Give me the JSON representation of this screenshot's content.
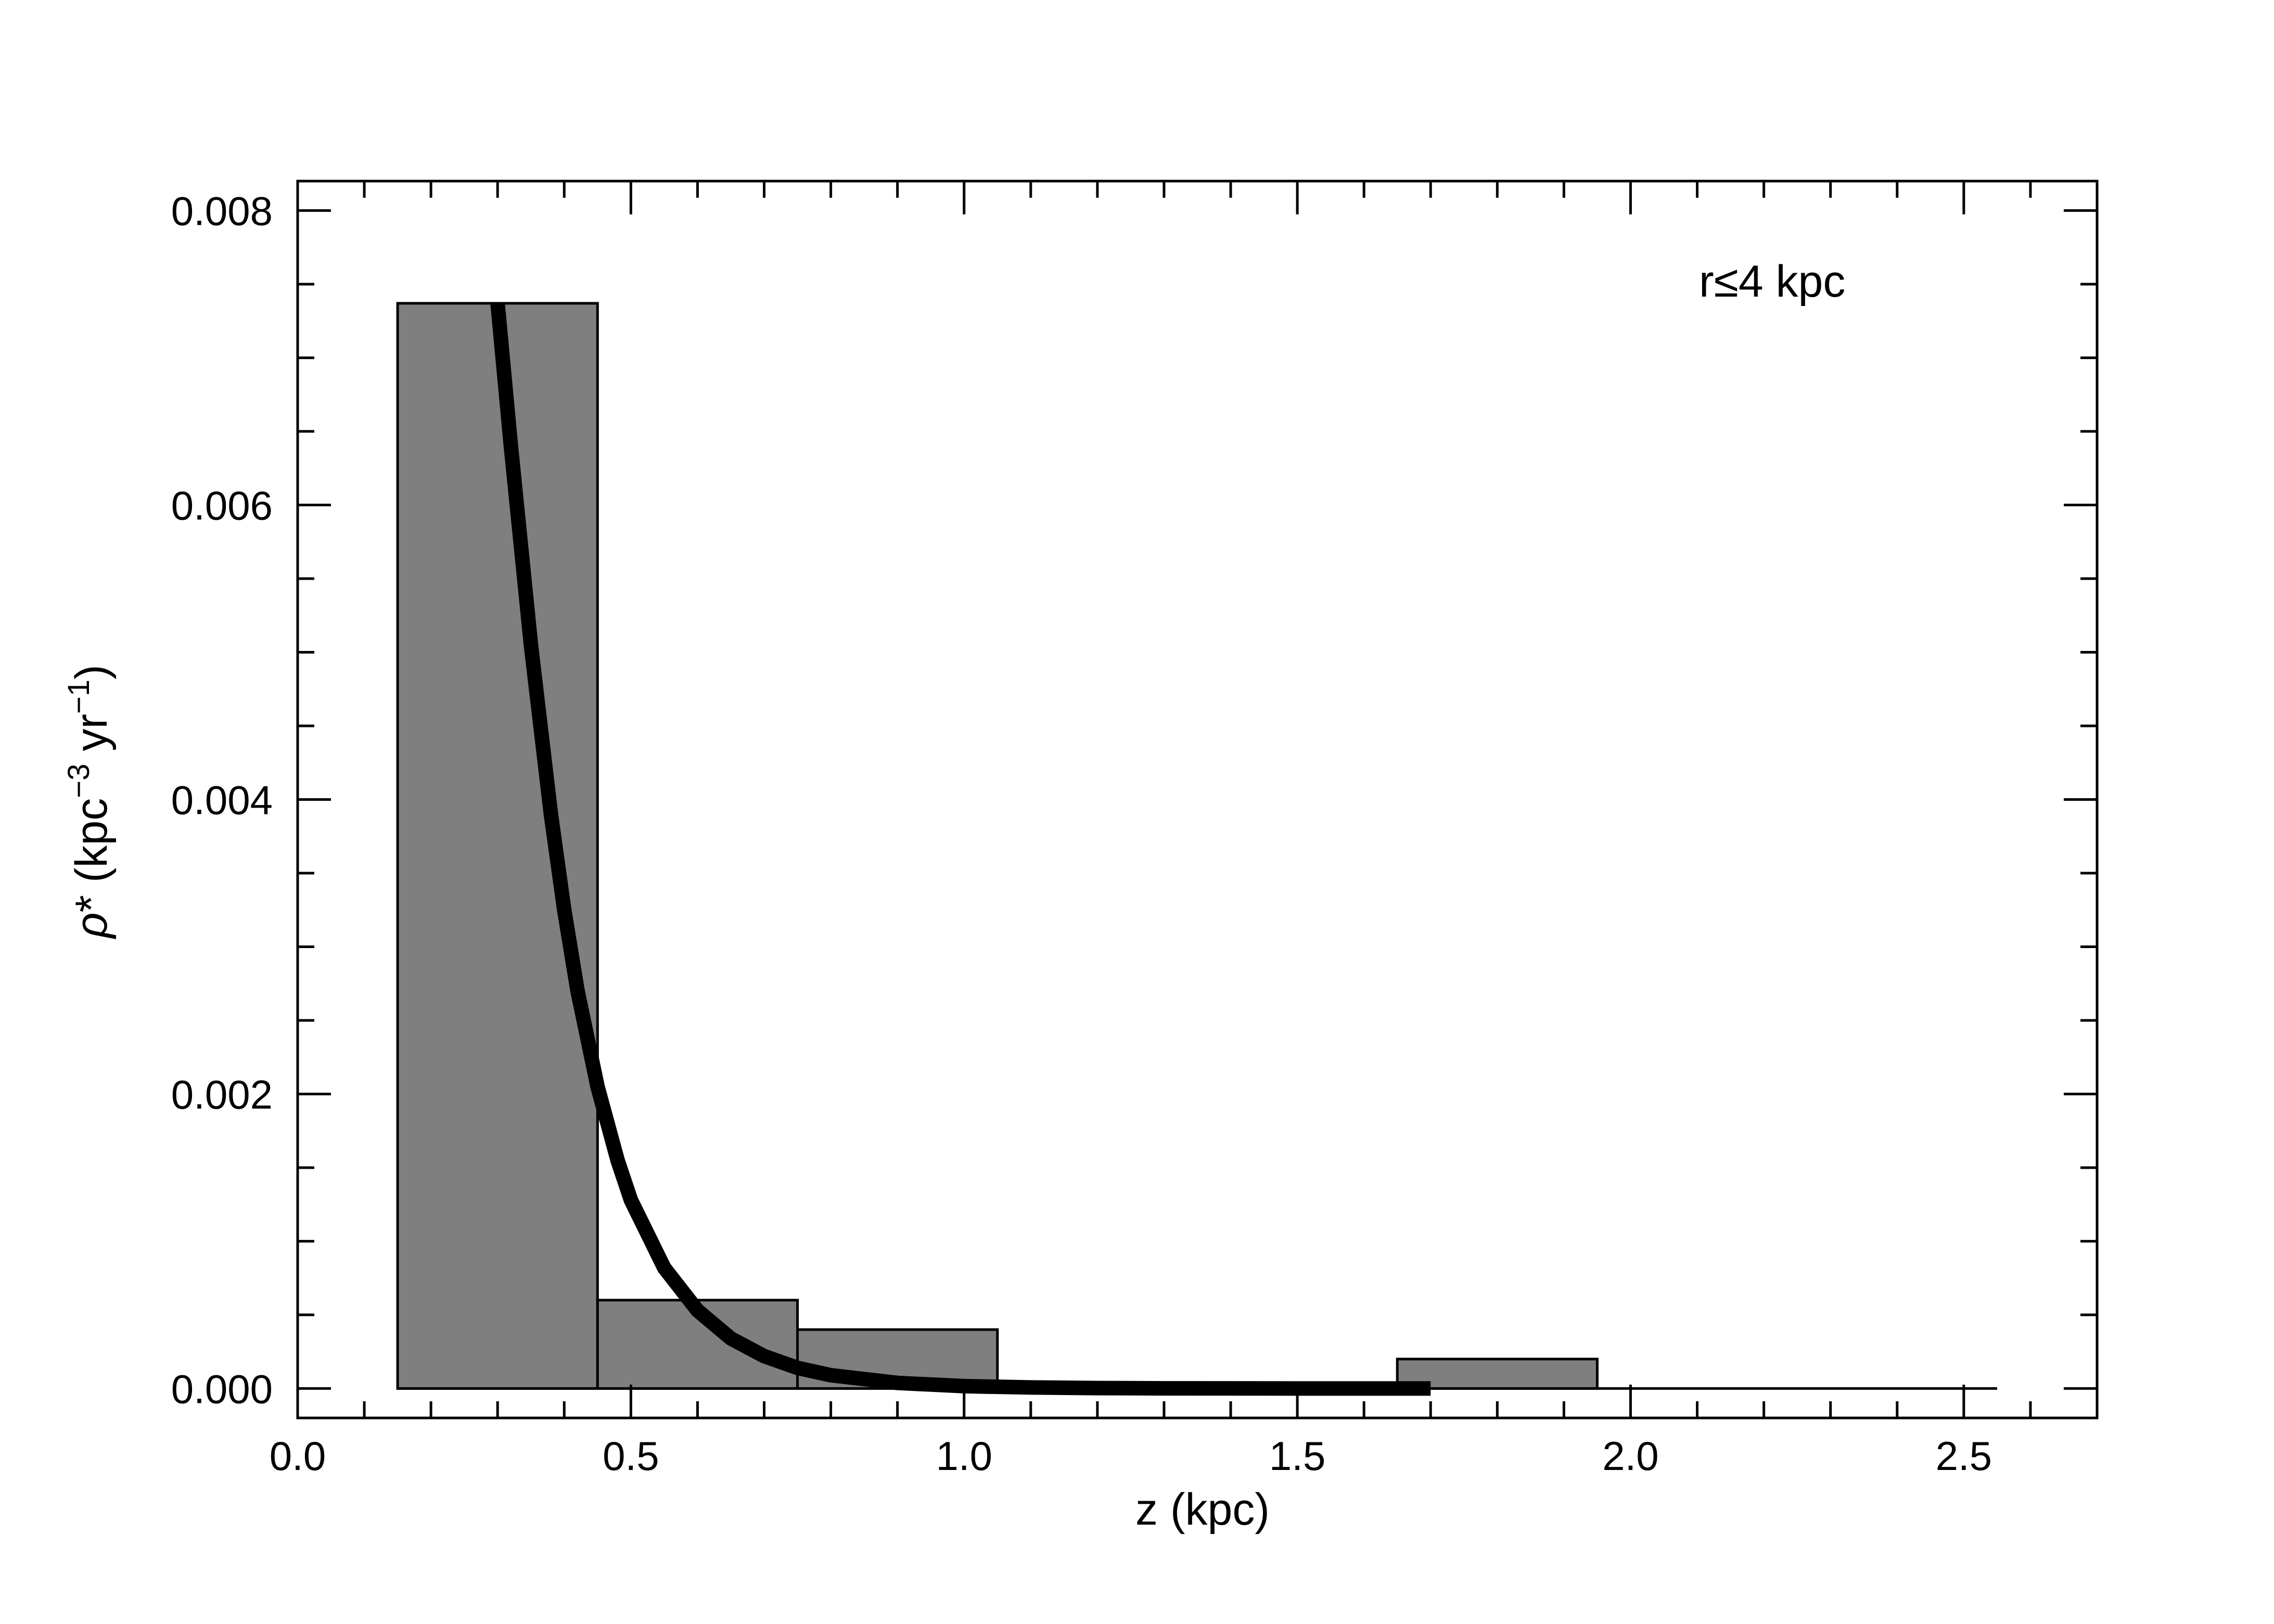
{
  "chart_data": {
    "type": "bar",
    "xlabel": "z (kpc)",
    "ylabel": {
      "symbol": "ρ",
      "star": "*",
      "open": " (kpc",
      "exp1": "−3",
      "mid": " yr",
      "exp2": "−1",
      "close": ")"
    },
    "annotation": "r≤4 kpc",
    "xlim": [
      0.0,
      2.7
    ],
    "ylim": [
      -0.0002,
      0.0082
    ],
    "xticks": [
      {
        "value": 0.0,
        "label": "0.0"
      },
      {
        "value": 0.5,
        "label": "0.5"
      },
      {
        "value": 1.0,
        "label": "1.0"
      },
      {
        "value": 1.5,
        "label": "1.5"
      },
      {
        "value": 2.0,
        "label": "2.0"
      },
      {
        "value": 2.5,
        "label": "2.5"
      }
    ],
    "xminor_step": 0.1,
    "yticks": [
      {
        "value": 0.0,
        "label": "0.000"
      },
      {
        "value": 0.002,
        "label": "0.002"
      },
      {
        "value": 0.004,
        "label": "0.004"
      },
      {
        "value": 0.006,
        "label": "0.006"
      },
      {
        "value": 0.008,
        "label": "0.008"
      }
    ],
    "yminor_step": 0.0005,
    "bins": [
      {
        "x0": 0.15,
        "x1": 0.45,
        "value": 0.00737
      },
      {
        "x0": 0.45,
        "x1": 0.75,
        "value": 0.0006
      },
      {
        "x0": 0.75,
        "x1": 1.05,
        "value": 0.0004
      },
      {
        "x0": 1.05,
        "x1": 1.35,
        "value": 0.0
      },
      {
        "x0": 1.35,
        "x1": 1.65,
        "value": 0.0
      },
      {
        "x0": 1.65,
        "x1": 1.95,
        "value": 0.0002
      },
      {
        "x0": 1.95,
        "x1": 2.25,
        "value": 0.0
      },
      {
        "x0": 2.25,
        "x1": 2.55,
        "value": 0.0
      }
    ],
    "fit_curve": {
      "x": [
        0.3,
        0.32,
        0.35,
        0.38,
        0.4,
        0.42,
        0.45,
        0.48,
        0.5,
        0.55,
        0.6,
        0.65,
        0.7,
        0.75,
        0.8,
        0.9,
        1.0,
        1.1,
        1.2,
        1.3,
        1.5,
        1.7
      ],
      "y": [
        0.00737,
        0.0064,
        0.00505,
        0.0039,
        0.00325,
        0.0027,
        0.00205,
        0.00155,
        0.00128,
        0.00082,
        0.00053,
        0.00034,
        0.00022,
        0.00014,
        9e-05,
        3.8e-05,
        1.6e-05,
        7e-06,
        3e-06,
        1e-06,
        0.0,
        0.0
      ]
    },
    "bar_color": "#7f7f7f",
    "line_color": "#000000",
    "grid": false
  }
}
